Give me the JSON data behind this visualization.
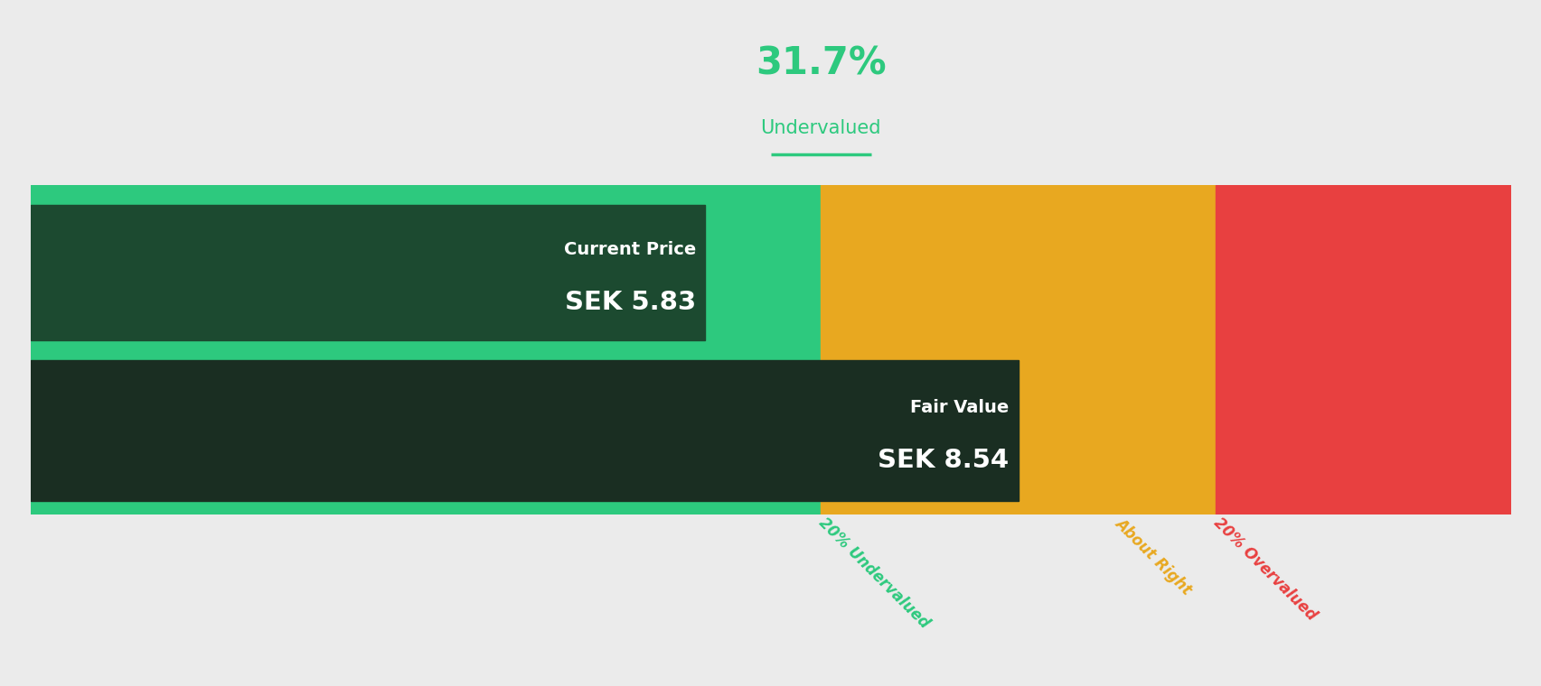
{
  "background_color": "#ebebeb",
  "percent_text": "31.7%",
  "percent_label": "Undervalued",
  "percent_color": "#2dc97e",
  "current_price_label": "Current Price",
  "current_price_value": "SEK 5.83",
  "fair_value_label": "Fair Value",
  "fair_value_value": "SEK 8.54",
  "current_price": 5.83,
  "fair_value": 8.54,
  "bright_green": "#2dc97e",
  "amber": "#e8a820",
  "red": "#e84040",
  "dark_green_top": "#1c4a30",
  "dark_green_bottom": "#1a2e22",
  "annotation_labels": [
    "20% Undervalued",
    "About Right",
    "20% Overvalued"
  ],
  "annotation_colors": [
    "#2dc97e",
    "#e8a820",
    "#e84040"
  ],
  "underline_color": "#2dc97e",
  "total_range_max": 12.8,
  "fv_08": 6.832,
  "fv_12": 10.248
}
